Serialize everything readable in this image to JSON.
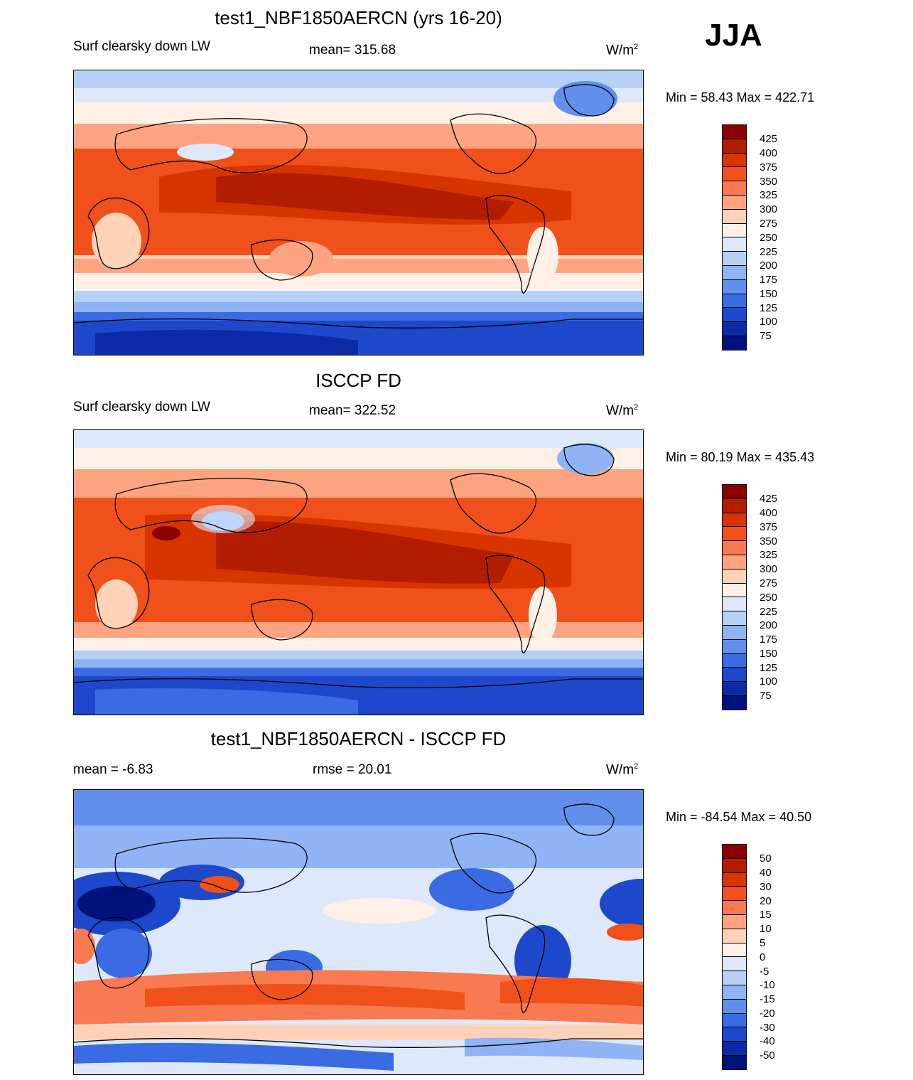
{
  "season": "JJA",
  "units_prefix": "W/m",
  "units_sup": "2",
  "panels": [
    {
      "title": "test1_NBF1850AERCN (yrs 16-20)",
      "left_label": "Surf clearsky down LW",
      "center_label": "mean= 315.68",
      "minmax": "Min =  58.43 Max = 422.71",
      "colorbar_ticks": [
        "425",
        "400",
        "375",
        "350",
        "325",
        "300",
        "275",
        "250",
        "225",
        "200",
        "175",
        "150",
        "125",
        "100",
        "75"
      ]
    },
    {
      "title": "ISCCP FD",
      "left_label": "Surf clearsky down LW",
      "center_label": "mean= 322.52",
      "minmax": "Min =  80.19 Max = 435.43",
      "colorbar_ticks": [
        "425",
        "400",
        "375",
        "350",
        "325",
        "300",
        "275",
        "250",
        "225",
        "200",
        "175",
        "150",
        "125",
        "100",
        "75"
      ]
    },
    {
      "title": "test1_NBF1850AERCN - ISCCP FD",
      "left_label": "mean =  -6.83",
      "center_label": "rmse =  20.01",
      "minmax": "Min = -84.54 Max =  40.50",
      "colorbar_ticks": [
        "50",
        "40",
        "30",
        "20",
        "15",
        "10",
        "5",
        "0",
        "-5",
        "-10",
        "-15",
        "-20",
        "-30",
        "-40",
        "-50"
      ]
    }
  ],
  "colors": {
    "scale": [
      "#8b0000",
      "#b21d00",
      "#d83400",
      "#f0501a",
      "#f87a50",
      "#fca482",
      "#fdd2b8",
      "#fef0e6",
      "#dde9fb",
      "#b7d0f8",
      "#8fb3f4",
      "#6090ec",
      "#3a6be2",
      "#1e48cc",
      "#0d2aa6",
      "#00117a"
    ]
  }
}
